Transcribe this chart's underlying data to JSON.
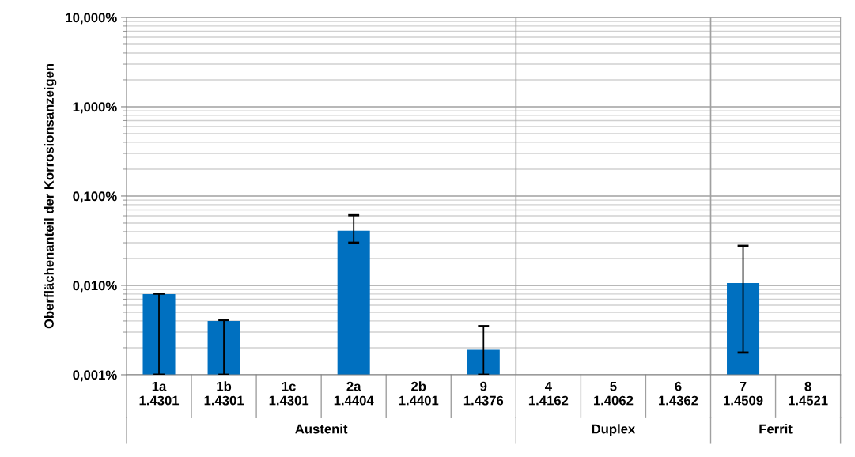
{
  "chart_data": {
    "type": "bar",
    "ylabel": "Oberflächenanteil der Korrosionsanzeigen",
    "categories": [
      "1a\n1.4301",
      "1b\n1.4301",
      "1c\n1.4301",
      "2a\n1.4404",
      "2b\n1.4401",
      "9\n1.4376",
      "4\n1.4162",
      "5\n1.4062",
      "6\n1.4362",
      "7\n1.4509",
      "8\n1.4521"
    ],
    "values": [
      0.008,
      0.004,
      null,
      0.041,
      null,
      0.0019,
      null,
      null,
      null,
      0.0106,
      null
    ],
    "errors": [
      [
        0.001,
        0.0081
      ],
      [
        0.001,
        0.0041
      ],
      null,
      [
        0.03,
        0.061
      ],
      null,
      [
        0.001,
        0.0035
      ],
      null,
      null,
      null,
      [
        0.00177,
        0.0277
      ],
      null
    ],
    "color": "#0070c0",
    "log": true,
    "ylim": [
      0.001,
      10
    ],
    "yticks": [
      {
        "value": 0.001,
        "label": "0,001%"
      },
      {
        "value": 0.01,
        "label": "0,010%"
      },
      {
        "value": 0.1,
        "label": "0,100%"
      },
      {
        "value": 1,
        "label": "1,000%"
      },
      {
        "value": 10,
        "label": "10,000%"
      }
    ],
    "grid": "y",
    "annotations": [
      "Austenit",
      "Duplex",
      "Ferrit"
    ]
  }
}
